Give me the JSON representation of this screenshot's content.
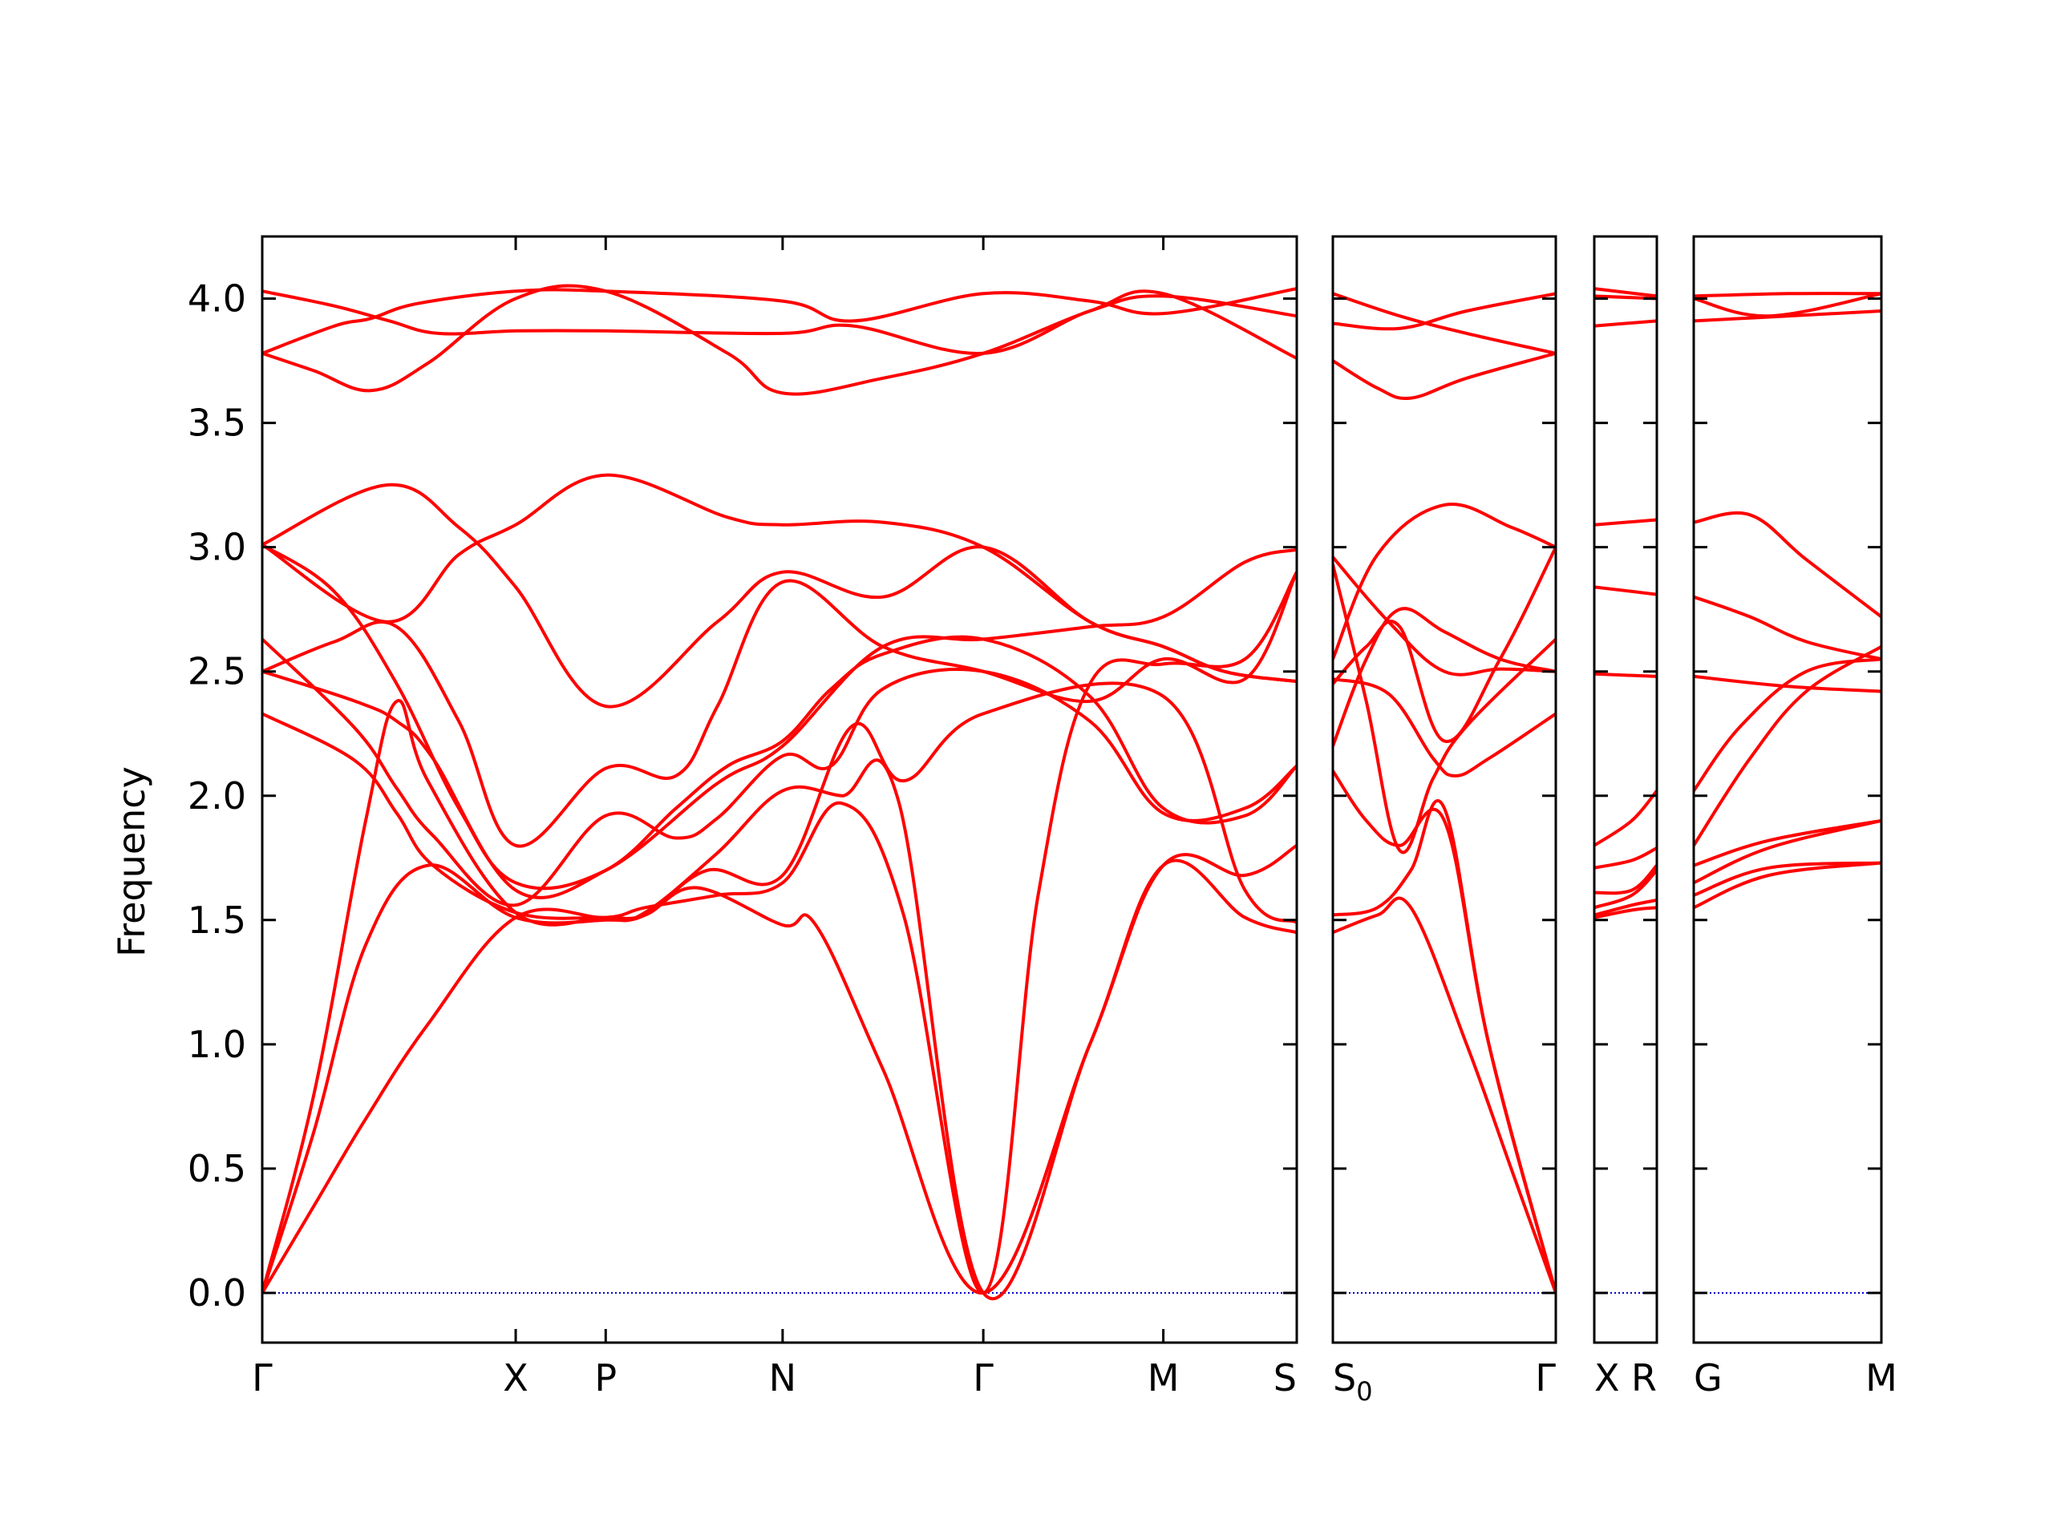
{
  "chart_data": {
    "type": "line",
    "ylabel": "Frequency",
    "ylim": [
      -0.2,
      4.25
    ],
    "y_ticks": [
      "0.0",
      "0.5",
      "1.0",
      "1.5",
      "2.0",
      "2.5",
      "3.0",
      "3.5",
      "4.0"
    ],
    "y_tick_values": [
      0.0,
      0.5,
      1.0,
      1.5,
      2.0,
      2.5,
      3.0,
      3.5,
      4.0
    ],
    "band_color": "#ff0000",
    "zero_line_color": "#0000cc",
    "segments": [
      {
        "x_labels": [
          "Γ",
          "X",
          "P",
          "N",
          "Γ",
          "M",
          "S"
        ],
        "x_label_positions": [
          0.0,
          0.245,
          0.332,
          0.503,
          0.697,
          0.871,
          1.0
        ],
        "bands": [
          {
            "x": [
              0,
              0.07,
              0.123,
              0.17,
              0.245,
              0.332,
              0.503,
              0.571,
              0.697,
              0.8,
              0.871,
              1.0
            ],
            "y": [
              4.03,
              3.97,
              3.91,
              3.86,
              3.87,
              3.87,
              3.86,
              3.89,
              3.78,
              3.95,
              4.01,
              3.93
            ]
          },
          {
            "x": [
              0,
              0.07,
              0.105,
              0.15,
              0.245,
              0.332,
              0.503,
              0.571,
              0.697,
              0.8,
              0.871,
              1.0
            ],
            "y": [
              3.78,
              3.89,
              3.92,
              3.98,
              4.03,
              4.03,
              3.99,
              3.91,
              4.02,
              3.99,
              3.94,
              4.04
            ]
          },
          {
            "x": [
              0,
              0.05,
              0.105,
              0.16,
              0.245,
              0.332,
              0.45,
              0.503,
              0.6,
              0.697,
              0.8,
              0.871,
              1.0
            ],
            "y": [
              3.78,
              3.71,
              3.63,
              3.74,
              4.0,
              4.03,
              3.78,
              3.62,
              3.68,
              3.78,
              3.95,
              4.02,
              3.76
            ]
          },
          {
            "x": [
              0,
              0.12,
              0.19,
              0.245,
              0.332,
              0.44,
              0.503,
              0.6,
              0.697,
              0.8,
              0.871,
              0.93,
              1.0
            ],
            "y": [
              3.01,
              3.25,
              3.08,
              2.84,
              2.36,
              2.7,
              2.9,
              2.8,
              3.0,
              2.7,
              2.6,
              2.5,
              2.46
            ]
          },
          {
            "x": [
              0,
              0.12,
              0.19,
              0.245,
              0.332,
              0.45,
              0.503,
              0.6,
              0.697,
              0.8,
              0.871,
              0.93,
              1.0
            ],
            "y": [
              3.01,
              2.7,
              2.97,
              3.09,
              3.29,
              3.12,
              3.09,
              3.1,
              3.0,
              2.7,
              2.6,
              2.5,
              2.46
            ]
          },
          {
            "x": [
              0,
              0.07,
              0.13,
              0.19,
              0.245,
              0.332,
              0.44,
              0.503,
              0.6,
              0.697,
              0.8,
              0.871,
              0.95,
              1.0
            ],
            "y": [
              3.01,
              2.82,
              2.45,
              1.95,
              1.65,
              1.7,
              2.05,
              2.2,
              2.6,
              2.63,
              2.68,
              2.72,
              2.94,
              2.99
            ]
          },
          {
            "x": [
              0,
              0.07,
              0.13,
              0.19,
              0.245,
              0.332,
              0.4,
              0.44,
              0.503,
              0.6,
              0.697,
              0.8,
              0.871,
              0.95,
              1.0
            ],
            "y": [
              2.5,
              2.62,
              2.68,
              2.3,
              1.8,
              2.11,
              2.08,
              2.36,
              2.86,
              2.6,
              2.5,
              2.38,
              2.55,
              2.47,
              2.9
            ]
          },
          {
            "x": [
              0,
              0.09,
              0.13,
              0.165,
              0.245,
              0.332,
              0.4,
              0.45,
              0.503,
              0.55,
              0.6,
              0.697,
              0.8,
              0.871,
              0.95,
              1.0
            ],
            "y": [
              2.5,
              2.38,
              2.3,
              2.15,
              1.62,
              1.7,
              1.95,
              2.12,
              2.22,
              2.43,
              2.57,
              2.63,
              2.4,
              1.95,
              1.92,
              2.12
            ]
          },
          {
            "x": [
              0,
              0.09,
              0.13,
              0.165,
              0.245,
              0.332,
              0.4,
              0.44,
              0.503,
              0.55,
              0.6,
              0.697,
              0.8,
              0.871,
              0.95,
              1.0
            ],
            "y": [
              2.63,
              2.27,
              2.03,
              1.84,
              1.56,
              1.92,
              1.83,
              1.91,
              2.16,
              2.12,
              2.43,
              2.5,
              2.3,
              1.93,
              1.95,
              2.12
            ]
          },
          {
            "x": [
              0,
              0.09,
              0.13,
              0.165,
              0.245,
              0.332,
              0.37,
              0.43,
              0.503,
              0.57,
              0.62,
              0.697,
              0.871,
              0.95,
              1.0
            ],
            "y": [
              2.33,
              2.14,
              1.93,
              1.72,
              1.53,
              1.51,
              1.52,
              1.7,
              1.68,
              2.28,
              2.06,
              2.33,
              2.4,
              1.62,
              1.49
            ]
          },
          {
            "x": [
              0,
              0.05,
              0.1,
              0.13,
              0.16,
              0.245,
              0.332,
              0.37,
              0.42,
              0.503,
              0.535,
              0.6,
              0.697,
              0.8,
              0.871,
              0.95,
              1.0
            ],
            "y": [
              0,
              0.8,
              1.9,
              2.38,
              2.06,
              1.53,
              1.51,
              1.52,
              1.63,
              1.48,
              1.48,
              0.9,
              0,
              1.0,
              1.72,
              1.51,
              1.45
            ]
          },
          {
            "x": [
              0,
              0.05,
              0.1,
              0.16,
              0.245,
              0.332,
              0.37,
              0.44,
              0.503,
              0.56,
              0.615,
              0.697,
              0.8,
              0.871,
              0.95,
              1.0
            ],
            "y": [
              0,
              0.65,
              1.4,
              1.72,
              1.51,
              1.5,
              1.53,
              1.77,
              2.02,
              2.0,
              1.98,
              0,
              1.0,
              1.72,
              1.68,
              1.8
            ]
          },
          {
            "x": [
              0,
              0.05,
              0.1,
              0.16,
              0.245,
              0.332,
              0.37,
              0.44,
              0.503,
              0.56,
              0.62,
              0.697,
              0.75,
              0.8,
              0.871,
              0.95,
              1.0
            ],
            "y": [
              0,
              0.35,
              0.7,
              1.08,
              1.51,
              1.51,
              1.55,
              1.6,
              1.65,
              1.97,
              1.52,
              0,
              1.6,
              2.45,
              2.53,
              2.55,
              2.9
            ]
          }
        ]
      },
      {
        "x_labels": [
          "S0",
          "Γ"
        ],
        "x_label_positions": [
          0.0,
          1.0
        ],
        "bands": [
          {
            "x": [
              0,
              0.3,
              0.6,
              1.0
            ],
            "y": [
              4.02,
              3.93,
              3.86,
              3.78
            ]
          },
          {
            "x": [
              0,
              0.3,
              0.6,
              1.0
            ],
            "y": [
              3.9,
              3.88,
              3.95,
              4.02
            ]
          },
          {
            "x": [
              0,
              0.2,
              0.35,
              0.6,
              1.0
            ],
            "y": [
              3.75,
              3.64,
              3.6,
              3.68,
              3.78
            ]
          },
          {
            "x": [
              0,
              0.25,
              0.5,
              0.75,
              1.0
            ],
            "y": [
              2.96,
              2.7,
              2.5,
              2.51,
              2.5
            ]
          },
          {
            "x": [
              0,
              0.2,
              0.5,
              0.8,
              1.0
            ],
            "y": [
              2.55,
              2.97,
              3.17,
              3.08,
              3.0
            ]
          },
          {
            "x": [
              0,
              0.15,
              0.3,
              0.5,
              0.75,
              1.0
            ],
            "y": [
              2.2,
              2.55,
              2.75,
              2.66,
              2.55,
              2.5
            ]
          },
          {
            "x": [
              0,
              0.15,
              0.3,
              0.5,
              0.75,
              1.0
            ],
            "y": [
              2.45,
              2.6,
              2.68,
              2.22,
              2.55,
              3.0
            ]
          },
          {
            "x": [
              0,
              0.25,
              0.45,
              0.55,
              0.7,
              1.0
            ],
            "y": [
              2.47,
              2.41,
              2.15,
              2.08,
              2.15,
              2.33
            ]
          },
          {
            "x": [
              0,
              0.15,
              0.3,
              0.45,
              0.6,
              1.0
            ],
            "y": [
              2.93,
              2.38,
              1.78,
              2.07,
              2.28,
              2.63
            ]
          },
          {
            "x": [
              0,
              0.15,
              0.3,
              0.5,
              0.7,
              1.0
            ],
            "y": [
              2.1,
              1.9,
              1.8,
              1.9,
              1.0,
              0
            ]
          },
          {
            "x": [
              0,
              0.2,
              0.35,
              0.5,
              0.7,
              1.0
            ],
            "y": [
              1.52,
              1.55,
              1.7,
              1.95,
              1.0,
              0
            ]
          },
          {
            "x": [
              0,
              0.2,
              0.35,
              0.6,
              0.8,
              1.0
            ],
            "y": [
              1.45,
              1.52,
              1.55,
              1.0,
              0.5,
              0
            ]
          }
        ]
      },
      {
        "x_labels": [
          "X",
          "R"
        ],
        "x_label_positions": [
          0.0,
          1.0
        ],
        "bands": [
          {
            "x": [
              0,
              1.0
            ],
            "y": [
              4.04,
              4.01
            ]
          },
          {
            "x": [
              0,
              1.0
            ],
            "y": [
              4.01,
              4.0
            ]
          },
          {
            "x": [
              0,
              1.0
            ],
            "y": [
              3.89,
              3.91
            ]
          },
          {
            "x": [
              0,
              1.0
            ],
            "y": [
              3.09,
              3.11
            ]
          },
          {
            "x": [
              0,
              1.0
            ],
            "y": [
              2.84,
              2.81
            ]
          },
          {
            "x": [
              0,
              1.0
            ],
            "y": [
              2.49,
              2.48
            ]
          },
          {
            "x": [
              0,
              0.6,
              1.0
            ],
            "y": [
              1.8,
              1.9,
              2.02
            ]
          },
          {
            "x": [
              0,
              0.6,
              1.0
            ],
            "y": [
              1.71,
              1.74,
              1.79
            ]
          },
          {
            "x": [
              0,
              0.6,
              1.0
            ],
            "y": [
              1.61,
              1.62,
              1.72
            ]
          },
          {
            "x": [
              0,
              0.6,
              1.0
            ],
            "y": [
              1.55,
              1.6,
              1.7
            ]
          },
          {
            "x": [
              0,
              0.6,
              1.0
            ],
            "y": [
              1.52,
              1.56,
              1.58
            ]
          },
          {
            "x": [
              0,
              0.6,
              1.0
            ],
            "y": [
              1.51,
              1.54,
              1.55
            ]
          }
        ]
      },
      {
        "x_labels": [
          "G",
          "M"
        ],
        "x_label_positions": [
          0.0,
          1.0
        ],
        "bands": [
          {
            "x": [
              0,
              0.5,
              1.0
            ],
            "y": [
              4.01,
              4.02,
              4.02
            ]
          },
          {
            "x": [
              0,
              0.4,
              1.0
            ],
            "y": [
              4.0,
              3.93,
              4.02
            ]
          },
          {
            "x": [
              0,
              0.5,
              1.0
            ],
            "y": [
              3.91,
              3.93,
              3.95
            ]
          },
          {
            "x": [
              0,
              0.3,
              0.6,
              1.0
            ],
            "y": [
              3.1,
              3.13,
              2.95,
              2.72
            ]
          },
          {
            "x": [
              0,
              0.3,
              0.6,
              1.0
            ],
            "y": [
              2.8,
              2.72,
              2.62,
              2.55
            ]
          },
          {
            "x": [
              0,
              0.5,
              1.0
            ],
            "y": [
              2.48,
              2.44,
              2.42
            ]
          },
          {
            "x": [
              0,
              0.25,
              0.6,
              1.0
            ],
            "y": [
              2.02,
              2.28,
              2.5,
              2.55
            ]
          },
          {
            "x": [
              0,
              0.3,
              0.6,
              1.0
            ],
            "y": [
              1.8,
              2.15,
              2.42,
              2.6
            ]
          },
          {
            "x": [
              0,
              0.4,
              1.0
            ],
            "y": [
              1.72,
              1.82,
              1.9
            ]
          },
          {
            "x": [
              0,
              0.4,
              1.0
            ],
            "y": [
              1.65,
              1.79,
              1.9
            ]
          },
          {
            "x": [
              0,
              0.4,
              1.0
            ],
            "y": [
              1.6,
              1.71,
              1.73
            ]
          },
          {
            "x": [
              0,
              0.4,
              1.0
            ],
            "y": [
              1.55,
              1.68,
              1.73
            ]
          }
        ]
      }
    ]
  }
}
